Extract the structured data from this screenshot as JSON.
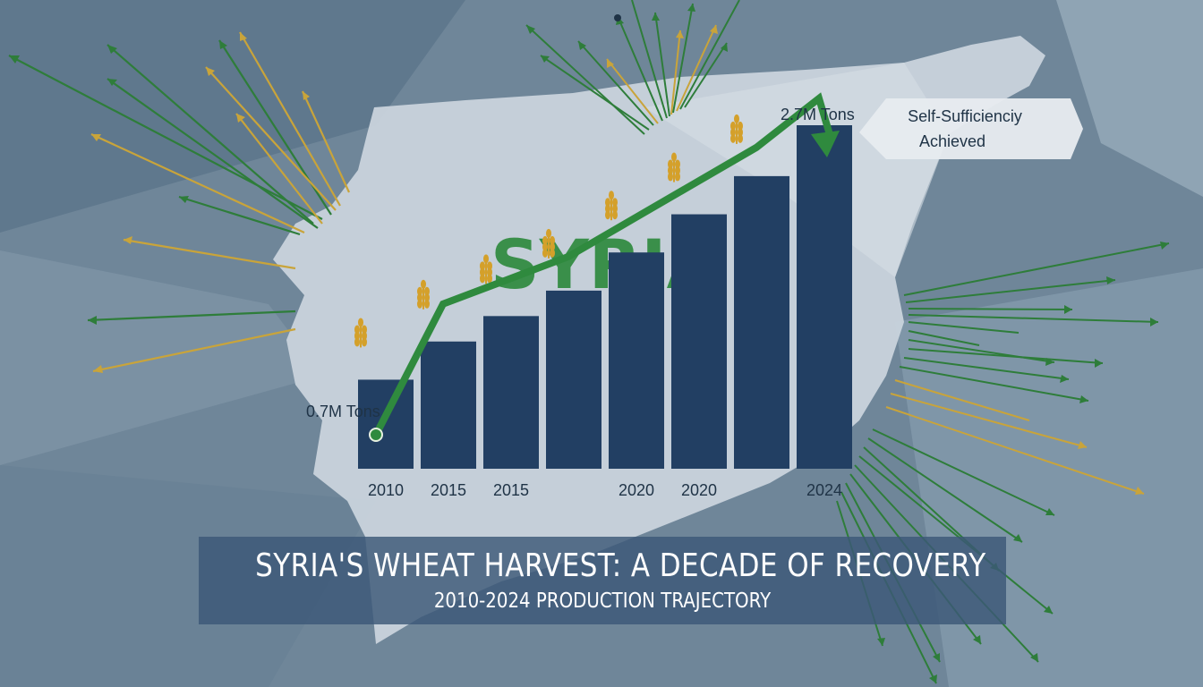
{
  "map_label": "SYRIA",
  "callout": "Self-Sufficienciy Achieved",
  "banner": {
    "title": "SYRIA'S WHEAT HARVEST: A DECADE OF RECOVERY",
    "subtitle": "2010-2024 PRODUCTION TRAJECTORY"
  },
  "colors": {
    "background": "#6f8699",
    "map": "#c9d3dc",
    "bar": "#223f63",
    "trend": "#2f8a3e",
    "wheat": "#d4a02a"
  },
  "chart_data": {
    "type": "bar",
    "categories": [
      "2010",
      "2015",
      "2015",
      "",
      "2020",
      "2020",
      "",
      "2024"
    ],
    "values": [
      0.7,
      1.0,
      1.2,
      1.4,
      1.7,
      2.0,
      2.3,
      2.7
    ],
    "unit": "M Tons",
    "start_label": "0.7M Tons",
    "end_label": "2.7M Tons",
    "trend_line": true,
    "grid": false,
    "legend": "none"
  }
}
